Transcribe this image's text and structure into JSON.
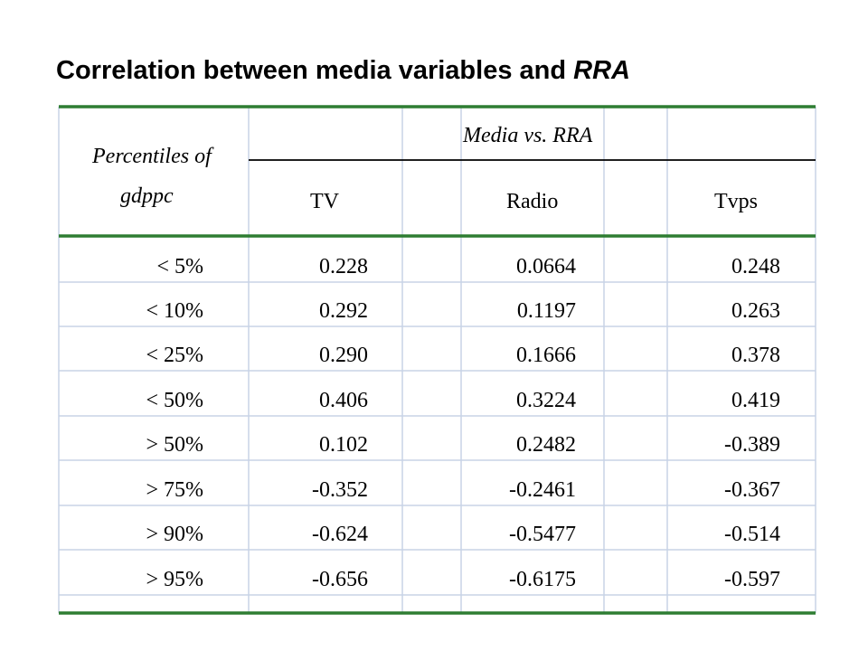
{
  "title": {
    "main": "Correlation between media variables and ",
    "emphasis": "RRA"
  },
  "table": {
    "row_header_line1": "Percentiles of",
    "row_header_line2": "gdppc",
    "group_header": "Media vs. RRA",
    "columns": [
      "TV",
      "Radio",
      "Tvps"
    ],
    "rows": [
      {
        "label": "< 5%",
        "tv": "0.228",
        "radio": "0.0664",
        "tvps": "0.248"
      },
      {
        "label": "< 10%",
        "tv": "0.292",
        "radio": "0.1197",
        "tvps": "0.263"
      },
      {
        "label": "< 25%",
        "tv": "0.290",
        "radio": "0.1666",
        "tvps": "0.378"
      },
      {
        "label": "< 50%",
        "tv": "0.406",
        "radio": "0.3224",
        "tvps": "0.419"
      },
      {
        "label": "> 50%",
        "tv": "0.102",
        "radio": "0.2482",
        "tvps": "-0.389"
      },
      {
        "label": "> 75%",
        "tv": "-0.352",
        "radio": "-0.2461",
        "tvps": "-0.367"
      },
      {
        "label": "> 90%",
        "tv": "-0.624",
        "radio": "-0.5477",
        "tvps": "-0.514"
      },
      {
        "label": "> 95%",
        "tv": "-0.656",
        "radio": "-0.6175",
        "tvps": "-0.597"
      }
    ]
  },
  "colors": {
    "accent_rule": "#2e7d32",
    "grid_line": "#c8d4e6",
    "text": "#000000"
  }
}
